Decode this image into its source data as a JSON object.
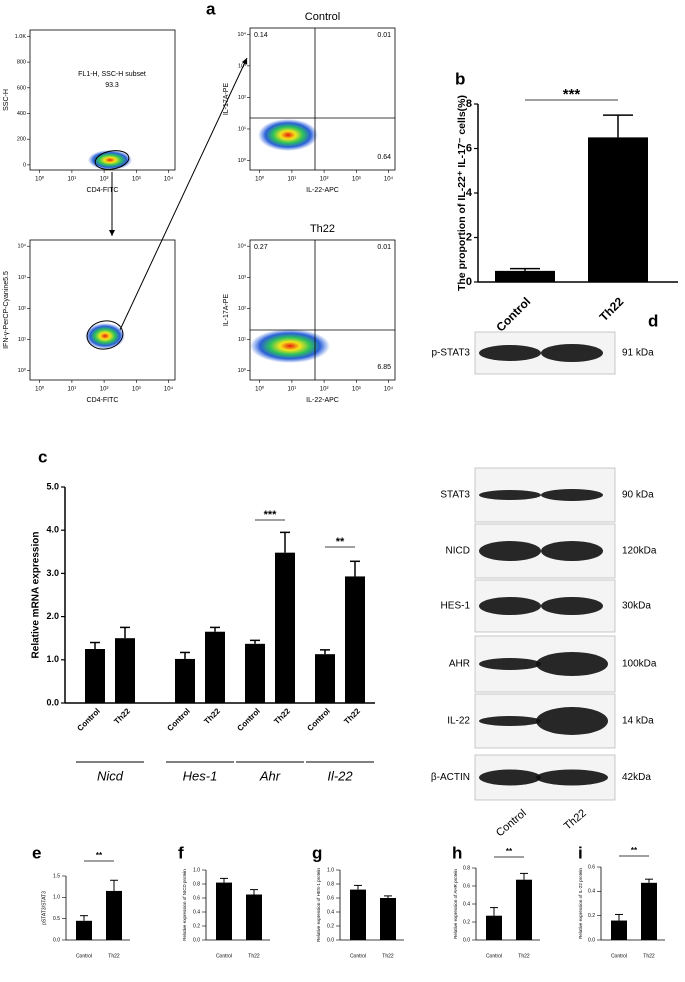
{
  "flow_plots": [
    {
      "label": "a",
      "xlabel": "CD4-FITC",
      "ylabel": "SSC-H",
      "gate_label": "FL1-H, SSC-H subset",
      "gate_value": 93.3,
      "xlim": [
        -0.3,
        4.2
      ],
      "xticks": [
        {
          "value": 0,
          "label": "10⁰"
        },
        {
          "value": 1,
          "label": "10¹"
        },
        {
          "value": 2,
          "label": "10²"
        },
        {
          "value": 3,
          "label": "10³"
        },
        {
          "value": 4,
          "label": "10⁴"
        }
      ],
      "ylim": [
        -40,
        1050
      ],
      "yticks": [
        0,
        200,
        400,
        600,
        800,
        {
          "value": 1000,
          "label": "1.0K"
        }
      ]
    },
    {
      "xlabel": "CD4-FITC",
      "ylabel": "IFN-γ-PerCP-Cyanine5.5",
      "xlim": [
        -0.3,
        4.2
      ],
      "xticks": [
        {
          "value": 0,
          "label": "10⁰"
        },
        {
          "value": 1,
          "label": "10¹"
        },
        {
          "value": 2,
          "label": "10²"
        },
        {
          "value": 3,
          "label": "10³"
        },
        {
          "value": 4,
          "label": "10⁴"
        }
      ],
      "ylim": [
        -0.3,
        4.2
      ],
      "yticks": [
        {
          "value": 0,
          "label": "10⁰"
        },
        {
          "value": 1,
          "label": "10¹"
        },
        {
          "value": 2,
          "label": "10²"
        },
        {
          "value": 3,
          "label": "10³"
        },
        {
          "value": 4,
          "label": "10⁴"
        }
      ]
    },
    {
      "title": "Control",
      "xlabel": "IL-22-APC",
      "ylabel": "IL-17A-PE",
      "upper_left": 0.14,
      "upper_right": 0.01,
      "lower_right": 0.64,
      "xlim": [
        -0.3,
        4.2
      ],
      "xticks": [
        {
          "value": 0,
          "label": "10⁰"
        },
        {
          "value": 1,
          "label": "10¹"
        },
        {
          "value": 2,
          "label": "10²"
        },
        {
          "value": 3,
          "label": "10³"
        },
        {
          "value": 4,
          "label": "10⁴"
        }
      ],
      "ylim": [
        -0.3,
        4.2
      ],
      "yticks": [
        {
          "value": 0,
          "label": "10⁰"
        },
        {
          "value": 1,
          "label": "10¹"
        },
        {
          "value": 2,
          "label": "10²"
        },
        {
          "value": 3,
          "label": "10³"
        },
        {
          "value": 4,
          "label": "10⁴"
        }
      ]
    },
    {
      "title": "Th22",
      "xlabel": "IL-22-APC",
      "ylabel": "IL-17A-PE",
      "upper_left": 0.27,
      "upper_right": 0.01,
      "lower_right": 6.85,
      "xlim": [
        -0.3,
        4.2
      ],
      "xticks": [
        {
          "value": 0,
          "label": "10⁰"
        },
        {
          "value": 1,
          "label": "10¹"
        },
        {
          "value": 2,
          "label": "10²"
        },
        {
          "value": 3,
          "label": "10³"
        },
        {
          "value": 4,
          "label": "10⁴"
        }
      ],
      "ylim": [
        -0.3,
        4.2
      ],
      "yticks": [
        {
          "value": 0,
          "label": "10⁰"
        },
        {
          "value": 1,
          "label": "10¹"
        },
        {
          "value": 2,
          "label": "10²"
        },
        {
          "value": 3,
          "label": "10³"
        },
        {
          "value": 4,
          "label": "10⁴"
        }
      ]
    }
  ],
  "chart_data": [
    {
      "type": "bar",
      "label": "b",
      "ylabel": "The proportion of IL-22⁺ IL-17⁻ cells(%)",
      "categories": [
        "Control",
        "Th22"
      ],
      "values": [
        0.5,
        6.5
      ],
      "errors": [
        0.1,
        1.0
      ],
      "color": "#000000",
      "ylim": [
        0,
        8
      ],
      "yticks": [
        0,
        2,
        4,
        6,
        8
      ],
      "annotations": [
        "***"
      ]
    },
    {
      "type": "bar",
      "label": "c",
      "ylabel": "Relative mRNA expression",
      "categories": [
        "Control",
        "Th22",
        "Control",
        "Th22",
        "Control",
        "Th22",
        "Control",
        "Th22"
      ],
      "groups": [
        "Nicd",
        "Hes-1",
        "Ahr",
        "Il-22"
      ],
      "values": [
        1.25,
        1.5,
        1.02,
        1.65,
        1.37,
        3.48,
        1.13,
        2.93
      ],
      "errors": [
        0.15,
        0.25,
        0.15,
        0.1,
        0.08,
        0.47,
        0.1,
        0.35
      ],
      "color": "#000000",
      "ylim": [
        0,
        5
      ],
      "yticks": [
        {
          "value": 0,
          "label": "0.0"
        },
        {
          "value": 1,
          "label": "1.0"
        },
        {
          "value": 2,
          "label": "2.0"
        },
        {
          "value": 3,
          "label": "3.0"
        },
        {
          "value": 4,
          "label": "4.0"
        },
        {
          "value": 5,
          "label": "5.0"
        }
      ],
      "annotations": [
        "***",
        "**"
      ]
    },
    {
      "type": "bar",
      "label": "e",
      "ylabel": "pSTAT3/STAT3",
      "categories": [
        "Control",
        "Th22"
      ],
      "values": [
        0.45,
        1.15
      ],
      "errors": [
        0.12,
        0.25
      ],
      "color": "#000000",
      "ylim": [
        0,
        1.5
      ],
      "yticks": [
        {
          "value": 0,
          "label": "0.0"
        },
        {
          "value": 0.5,
          "label": "0.5"
        },
        {
          "value": 1,
          "label": "1.0"
        },
        {
          "value": 1.5,
          "label": "1.5"
        }
      ],
      "annotations": [
        "**"
      ]
    },
    {
      "type": "bar",
      "label": "f",
      "ylabel": "Relative expression of NICD protein",
      "categories": [
        "Control",
        "Th22"
      ],
      "values": [
        0.82,
        0.65
      ],
      "errors": [
        0.06,
        0.07
      ],
      "color": "#000000",
      "ylim": [
        0,
        1
      ],
      "yticks": [
        {
          "value": 0,
          "label": "0.0"
        },
        {
          "value": 0.2,
          "label": "0.2"
        },
        {
          "value": 0.4,
          "label": "0.4"
        },
        {
          "value": 0.6,
          "label": "0.6"
        },
        {
          "value": 0.8,
          "label": "0.8"
        },
        {
          "value": 1,
          "label": "1.0"
        }
      ]
    },
    {
      "type": "bar",
      "label": "g",
      "ylabel": "Relative expression of HES-1 protein",
      "categories": [
        "Control",
        "Th22"
      ],
      "values": [
        0.72,
        0.6
      ],
      "errors": [
        0.06,
        0.03
      ],
      "color": "#000000",
      "ylim": [
        0,
        1
      ],
      "yticks": [
        {
          "value": 0,
          "label": "0.0"
        },
        {
          "value": 0.2,
          "label": "0.2"
        },
        {
          "value": 0.4,
          "label": "0.4"
        },
        {
          "value": 0.6,
          "label": "0.6"
        },
        {
          "value": 0.8,
          "label": "0.8"
        },
        {
          "value": 1,
          "label": "1.0"
        }
      ]
    },
    {
      "type": "bar",
      "label": "h",
      "ylabel": "Relative expression of AHR protein",
      "categories": [
        "Control",
        "Th22"
      ],
      "values": [
        0.27,
        0.67
      ],
      "errors": [
        0.09,
        0.07
      ],
      "color": "#000000",
      "ylim": [
        0,
        0.8
      ],
      "yticks": [
        {
          "value": 0,
          "label": "0.0"
        },
        {
          "value": 0.2,
          "label": "0.2"
        },
        {
          "value": 0.4,
          "label": "0.4"
        },
        {
          "value": 0.6,
          "label": "0.6"
        },
        {
          "value": 0.8,
          "label": "0.8"
        }
      ],
      "annotations": [
        "**"
      ]
    },
    {
      "type": "bar",
      "label": "i",
      "ylabel": "Relative expression of IL-22 protein",
      "categories": [
        "Control",
        "Th22"
      ],
      "values": [
        0.16,
        0.47
      ],
      "errors": [
        0.05,
        0.03
      ],
      "color": "#000000",
      "ylim": [
        0,
        0.6
      ],
      "yticks": [
        {
          "value": 0,
          "label": "0.0"
        },
        {
          "value": 0.2,
          "label": "0.2"
        },
        {
          "value": 0.4,
          "label": "0.4"
        },
        {
          "value": 0.6,
          "label": "0.6"
        }
      ],
      "annotations": [
        "**"
      ]
    }
  ],
  "western": {
    "label": "d",
    "lanes": [
      "Control",
      "Th22"
    ],
    "rows": [
      {
        "name": "p-STAT3",
        "kda": "91 kDa"
      },
      {
        "name": "STAT3",
        "kda": "90  kDa"
      },
      {
        "name": "NICD",
        "kda": "120kDa"
      },
      {
        "name": "HES-1",
        "kda": "30kDa"
      },
      {
        "name": "AHR",
        "kda": "100kDa"
      },
      {
        "name": "IL-22",
        "kda": "14 kDa"
      },
      {
        "name": "β-ACTIN",
        "kda": "42kDa"
      }
    ]
  }
}
